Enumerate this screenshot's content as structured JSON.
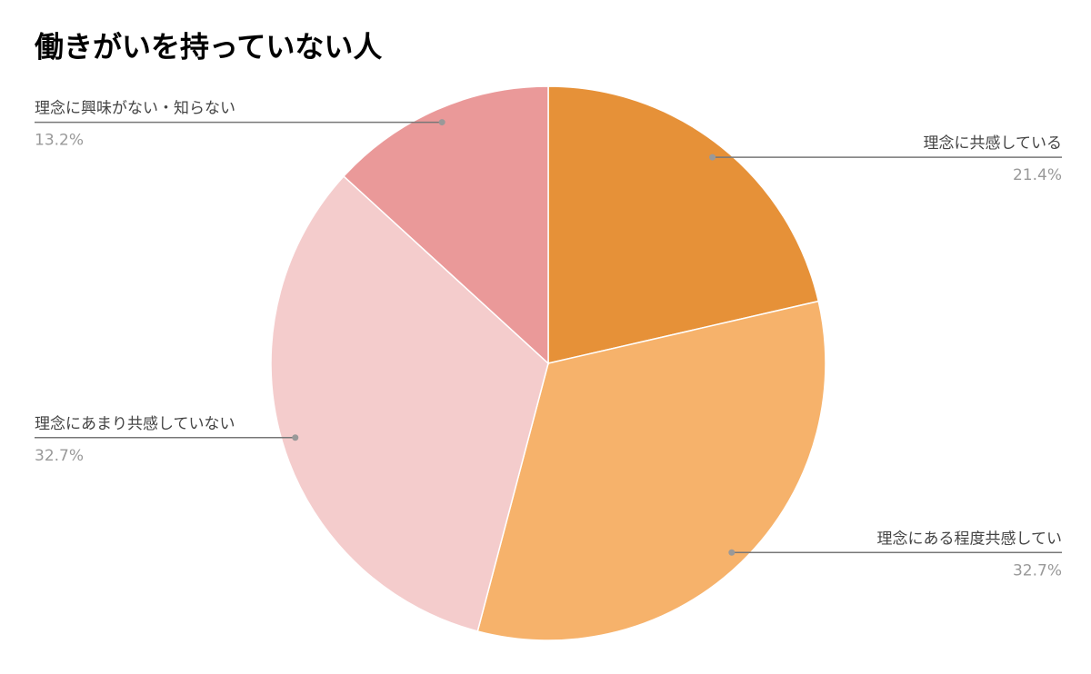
{
  "chart_data": {
    "type": "pie",
    "title": "働きがいを持っていない人",
    "categories": [
      "理念に共感している",
      "理念にある程度共感してい",
      "理念にあまり共感していない",
      "理念に興味がない・知らない"
    ],
    "values": [
      21.4,
      32.7,
      32.7,
      13.2
    ],
    "value_labels": [
      "21.4%",
      "32.7%",
      "32.7%",
      "13.2%"
    ],
    "colors": [
      "#e69138",
      "#f6b26b",
      "#f4cccc",
      "#ea9999"
    ]
  }
}
